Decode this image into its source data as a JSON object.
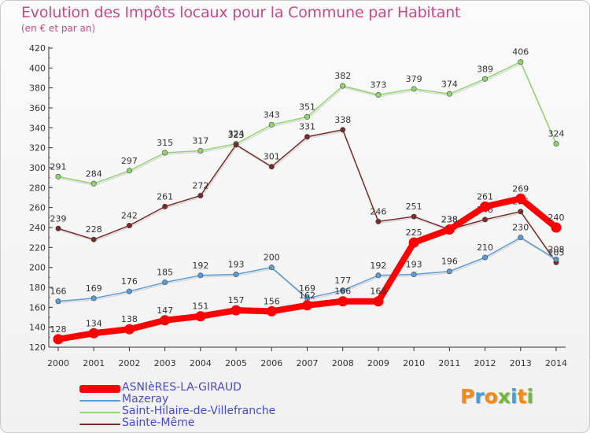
{
  "title": "Evolution des Impôts locaux pour la Commune par Habitant",
  "subtitle": "(en € et par an)",
  "logo": [
    "P",
    "r",
    "o",
    "x",
    "i",
    "t",
    "i"
  ],
  "logo_colors": [
    "#f08a18",
    "#3fa0d8",
    "#f08a18",
    "#72b63a",
    "#3fa0d8",
    "#f08a18",
    "#72b63a"
  ],
  "chart_data": {
    "type": "line",
    "title": "Evolution des Impôts locaux pour la Commune par Habitant",
    "subtitle": "(en € et par an)",
    "xlabel": "",
    "ylabel": "",
    "x": [
      "2000",
      "2001",
      "2002",
      "2003",
      "2004",
      "2005",
      "2006",
      "2007",
      "2008",
      "2009",
      "2010",
      "2011",
      "2012",
      "2013",
      "2014"
    ],
    "ylim": [
      120,
      420
    ],
    "yticks": [
      120,
      140,
      160,
      180,
      200,
      220,
      240,
      260,
      280,
      300,
      320,
      340,
      360,
      380,
      400,
      420
    ],
    "grid": false,
    "legend_position": "bottom-left",
    "series": [
      {
        "name": "Saint-Hilaire-de-Villefranche",
        "color": "#8fd670",
        "values": [
          291,
          284,
          297,
          315,
          317,
          324,
          343,
          351,
          382,
          373,
          379,
          374,
          389,
          406,
          324
        ]
      },
      {
        "name": "Sainte-Même",
        "color": "#7a2a2a",
        "values": [
          239,
          228,
          242,
          261,
          272,
          323,
          301,
          331,
          338,
          246,
          251,
          238,
          248,
          256,
          205
        ]
      },
      {
        "name": "Mazeray",
        "color": "#5b9bd5",
        "values": [
          166,
          169,
          176,
          185,
          192,
          193,
          200,
          169,
          177,
          192,
          193,
          196,
          210,
          230,
          208
        ]
      },
      {
        "name": "ASNIèRES-LA-GIRAUD",
        "color": "#ff0000",
        "values": [
          128,
          134,
          138,
          147,
          151,
          157,
          156,
          162,
          166,
          166,
          225,
          238,
          261,
          269,
          240
        ]
      }
    ],
    "point_labels": [
      [
        "291",
        "284",
        "297",
        "315",
        "317",
        "324",
        "343",
        "351",
        "382",
        "373",
        "379",
        "374",
        "389",
        "406",
        "324"
      ],
      [
        "239",
        "228",
        "242",
        "261",
        "272",
        "323",
        "301",
        "331",
        "338",
        "246",
        "251",
        "238",
        "248",
        "256",
        "205"
      ],
      [
        "166",
        "169",
        "176",
        "185",
        "192",
        "193",
        "200",
        "169",
        "177",
        "192",
        "193",
        "196",
        "210",
        "230",
        "208"
      ],
      [
        "128",
        "134",
        "138",
        "147",
        "151",
        "157",
        "156",
        "162",
        "166",
        "166",
        "225",
        "238",
        "261",
        "269",
        "240"
      ]
    ]
  }
}
